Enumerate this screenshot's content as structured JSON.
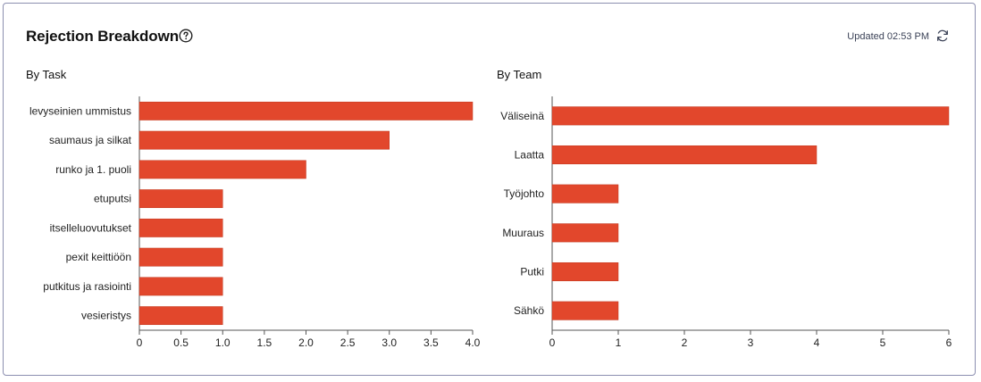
{
  "card": {
    "title": "Rejection Breakdown",
    "updated_text": "Updated 02:53 PM"
  },
  "icons": {
    "help": "help-circle-icon",
    "refresh": "refresh-icon"
  },
  "colors": {
    "bar": "#e2472c",
    "axis": "#555555",
    "text": "#222222"
  },
  "chart_data": [
    {
      "type": "bar",
      "orientation": "horizontal",
      "title": "By Task",
      "categories": [
        "levyseinien ummistus",
        "saumaus ja silkat",
        "runko ja 1. puoli",
        "etuputsi",
        "itselleluovutukset",
        "pexit keittiöön",
        "putkitus ja rasiointi",
        "vesieristys"
      ],
      "values": [
        4,
        3,
        2,
        1,
        1,
        1,
        1,
        1
      ],
      "xlim": [
        0,
        4
      ],
      "xticks": [
        "0",
        "0.5",
        "1.0",
        "1.5",
        "2.0",
        "2.5",
        "3.0",
        "3.5",
        "4.0"
      ],
      "grid": false
    },
    {
      "type": "bar",
      "orientation": "horizontal",
      "title": "By Team",
      "categories": [
        "Väliseinä",
        "Laatta",
        "Työjohto",
        "Muuraus",
        "Putki",
        "Sähkö"
      ],
      "values": [
        6,
        4,
        1,
        1,
        1,
        1
      ],
      "xlim": [
        0,
        6
      ],
      "xticks": [
        "0",
        "1",
        "2",
        "3",
        "4",
        "5",
        "6"
      ],
      "grid": false
    }
  ]
}
